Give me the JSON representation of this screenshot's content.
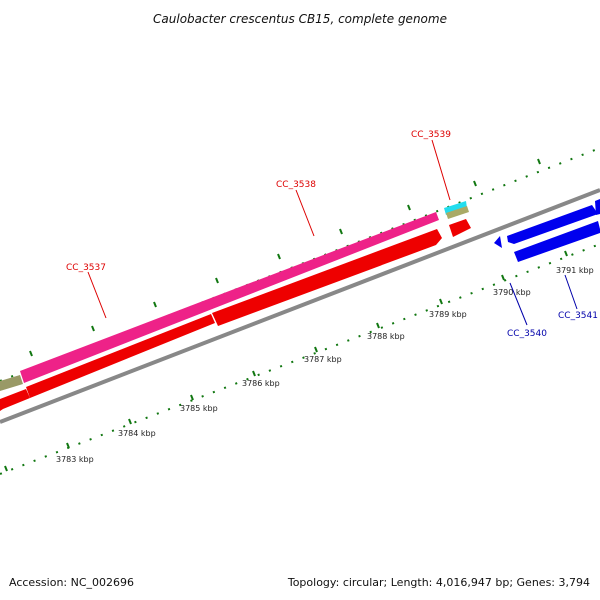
{
  "title": "Caulobacter crescentus CB15, complete genome",
  "footer": {
    "accession": "Accession: NC_002696",
    "summary": "Topology: circular; Length: 4,016,947 bp; Genes: 3,794"
  },
  "colors": {
    "forward_gene_label": "#dd0000",
    "reverse_gene_label": "#0000aa",
    "backbone": "#888888",
    "pink_track": "#ee2288",
    "red_track": "#ee0000",
    "blue_track": "#0000ee",
    "cyan_track": "#22ddee",
    "olive_track": "#aaaa66",
    "tick_green": "#117711"
  },
  "tick_labels": [
    "3783 kbp",
    "3784 kbp",
    "3785 kbp",
    "3786 kbp",
    "3787 kbp",
    "3788 kbp",
    "3789 kbp",
    "3790 kbp",
    "3791 kbp"
  ],
  "gene_labels": {
    "cc_3537": "CC_3537",
    "cc_3538": "CC_3538",
    "cc_3539": "CC_3539",
    "cc_3540": "CC_3540",
    "cc_3541": "CC_3541"
  }
}
